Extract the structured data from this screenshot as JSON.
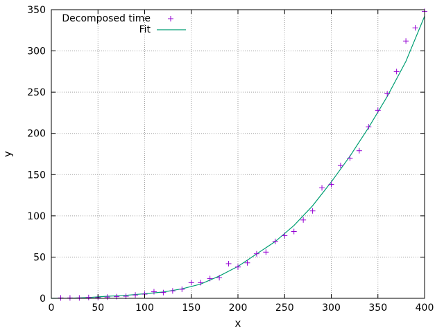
{
  "chart_data": {
    "type": "scatter",
    "title": "",
    "xlabel": "x",
    "ylabel": "y",
    "xlim": [
      0,
      400
    ],
    "ylim": [
      0,
      350
    ],
    "x_ticks": [
      0,
      50,
      100,
      150,
      200,
      250,
      300,
      350,
      400
    ],
    "y_ticks": [
      0,
      50,
      100,
      150,
      200,
      250,
      300,
      350
    ],
    "x_tick_labels": [
      "0",
      "50",
      "100",
      "150",
      "200",
      "250",
      "300",
      "350",
      "400"
    ],
    "y_tick_labels": [
      "0",
      "50",
      "100",
      "150",
      "200",
      "250",
      "300",
      "350"
    ],
    "grid": true,
    "legend_position": "top-left",
    "series": [
      {
        "name": "Decomposed time",
        "kind": "points",
        "marker": "plus",
        "color": "#9400D3",
        "x": [
          10,
          20,
          30,
          40,
          50,
          60,
          70,
          80,
          90,
          100,
          110,
          120,
          130,
          140,
          150,
          160,
          170,
          180,
          190,
          200,
          210,
          220,
          230,
          240,
          250,
          260,
          270,
          280,
          290,
          300,
          310,
          320,
          330,
          340,
          350,
          360,
          370,
          380,
          390,
          400
        ],
        "y": [
          0.5,
          0.5,
          0.5,
          1,
          1,
          1.5,
          2,
          2.5,
          4,
          5,
          8,
          7,
          9,
          11,
          19,
          19,
          24,
          25,
          42,
          38,
          43,
          54,
          56,
          69,
          76,
          81,
          95,
          106,
          134,
          138,
          161,
          170,
          179,
          208,
          228,
          248,
          275,
          312,
          328,
          348
        ]
      },
      {
        "name": "Fit",
        "kind": "line",
        "color": "#009E73",
        "x": [
          0,
          20,
          40,
          60,
          80,
          100,
          120,
          140,
          160,
          180,
          200,
          220,
          240,
          260,
          280,
          300,
          320,
          340,
          360,
          380,
          400
        ],
        "y": [
          0,
          0.2,
          1,
          2.5,
          3.6,
          5.5,
          7.6,
          11.5,
          17.3,
          27,
          38.7,
          53.8,
          68.9,
          88.3,
          112.2,
          141.1,
          172.3,
          207.1,
          244.8,
          287.4,
          342
        ]
      }
    ]
  }
}
